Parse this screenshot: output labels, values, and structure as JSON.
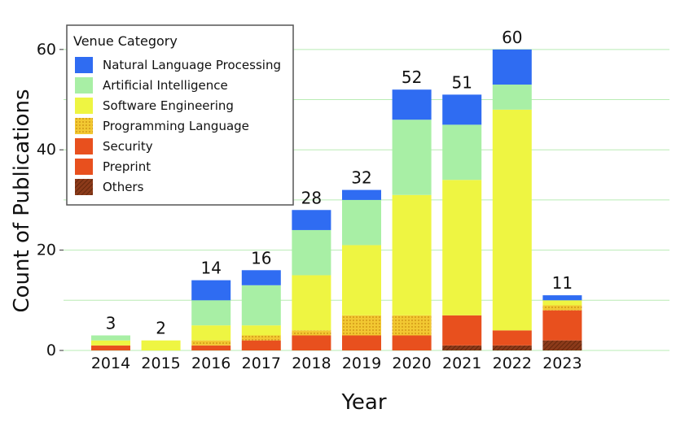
{
  "chart_data": {
    "type": "bar",
    "stacked": true,
    "xlabel": "Year",
    "ylabel": "Count of Publications",
    "ylim": [
      0,
      65
    ],
    "yticks": [
      0,
      20,
      40,
      60
    ],
    "grid": true,
    "legend_position": "top-left",
    "legend_title": "Venue Category",
    "categories": [
      "2014",
      "2015",
      "2016",
      "2017",
      "2018",
      "2019",
      "2020",
      "2021",
      "2022",
      "2023"
    ],
    "totals": [
      3,
      2,
      14,
      16,
      28,
      32,
      52,
      51,
      60,
      11
    ],
    "series": [
      {
        "name": "Others",
        "color": "#8b3a1a",
        "pattern": "diagonal-hatch",
        "values": [
          0,
          0,
          0,
          0,
          0,
          0,
          0,
          1,
          1,
          2
        ]
      },
      {
        "name": "Preprint",
        "color": "#e8501e",
        "values": [
          1,
          0,
          1,
          2,
          3,
          3,
          3,
          6,
          3,
          6
        ]
      },
      {
        "name": "Security",
        "color": "#e8501e",
        "values": [
          0,
          0,
          0,
          0,
          0,
          0,
          0,
          0,
          0,
          0
        ]
      },
      {
        "name": "Programming Language",
        "color": "#f2c832",
        "pattern": "dots",
        "values": [
          0,
          0,
          1,
          1,
          1,
          4,
          4,
          0,
          0,
          1
        ]
      },
      {
        "name": "Software Engineering",
        "color": "#eef542",
        "values": [
          1,
          2,
          3,
          2,
          11,
          14,
          24,
          27,
          44,
          1
        ]
      },
      {
        "name": "Artificial Intelligence",
        "color": "#a8efa5",
        "values": [
          1,
          0,
          5,
          8,
          9,
          9,
          15,
          11,
          5,
          0
        ]
      },
      {
        "name": "Natural Language Processing",
        "color": "#2f6cf2",
        "values": [
          0,
          0,
          4,
          3,
          4,
          2,
          6,
          6,
          7,
          1
        ]
      }
    ],
    "legend_order": [
      "Natural Language Processing",
      "Artificial Intelligence",
      "Software Engineering",
      "Programming Language",
      "Security",
      "Preprint",
      "Others"
    ]
  }
}
